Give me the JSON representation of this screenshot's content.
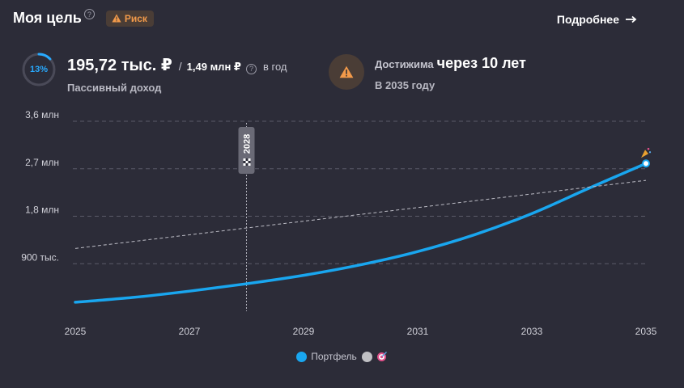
{
  "header": {
    "title": "Моя цель",
    "help_icon": "question-circle-icon",
    "risk_label": "Риск",
    "more_label": "Подробнее"
  },
  "progress": {
    "percent_label": "13%",
    "fraction": 0.13,
    "color": "#28aaff"
  },
  "income": {
    "amount": "195,72 тыс. ₽",
    "separator": "/",
    "target": "1,49 млн ₽",
    "period": "в год",
    "caption": "Пассивный доход"
  },
  "reach": {
    "prefix": "Достижима",
    "value": "через 10 лет",
    "caption": "В 2035 году"
  },
  "legend": {
    "portfolio_label": "Портфель",
    "portfolio_color": "#19a6ef",
    "goal_color": "#c0c0c4",
    "goal_icon": "target-icon"
  },
  "colors": {
    "background": "#2c2c38",
    "accent": "#19a6ef",
    "warning": "#f29a4a"
  },
  "chart_data": {
    "type": "line",
    "x_ticks": [
      "2025",
      "2027",
      "2029",
      "2031",
      "2033",
      "2035"
    ],
    "y_ticks": [
      {
        "value": 900000,
        "label": "900 тыс."
      },
      {
        "value": 1800000,
        "label": "1,8 млн"
      },
      {
        "value": 2700000,
        "label": "2,7 млн"
      },
      {
        "value": 3600000,
        "label": "3,6 млн"
      }
    ],
    "xlim": [
      2025,
      2035
    ],
    "ylim": [
      0,
      3600000
    ],
    "marker": {
      "x": 2028,
      "label": "2028"
    },
    "series": [
      {
        "name": "Портфель",
        "style": "solid",
        "color": "#19a6ef",
        "x": [
          2025,
          2026,
          2027,
          2028,
          2029,
          2030,
          2031,
          2032,
          2033,
          2034,
          2035
        ],
        "y": [
          170000,
          260000,
          380000,
          520000,
          680000,
          880000,
          1130000,
          1450000,
          1850000,
          2330000,
          2800000
        ]
      },
      {
        "style": "dashed",
        "color": "#bdbdc6",
        "x": [
          2025,
          2035
        ],
        "y": [
          1190000,
          2480000
        ]
      }
    ],
    "grid": true
  }
}
